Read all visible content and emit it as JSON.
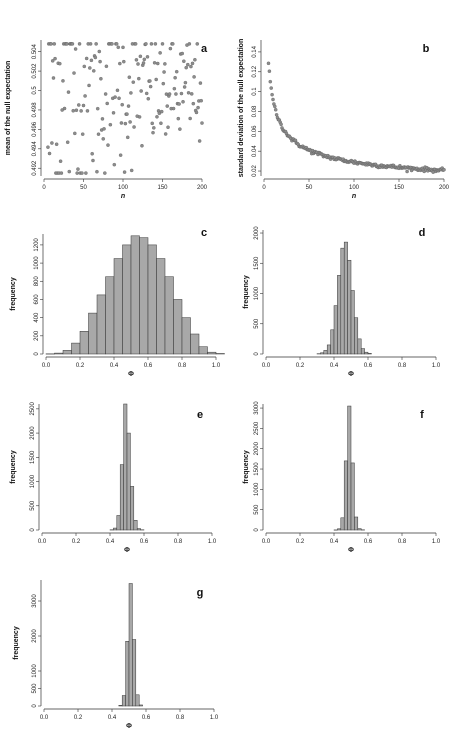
{
  "chart_data": [
    {
      "panel": "a",
      "type": "scatter",
      "xlabel": "n",
      "ylabel": "mean of the null expectation",
      "xlim": [
        0,
        200
      ],
      "ylim": [
        0.4912,
        0.5052
      ],
      "xticks": [
        0,
        50,
        100,
        150,
        200
      ],
      "yticks": [
        0.492,
        0.494,
        0.496,
        0.498,
        0.5,
        0.502,
        0.504
      ],
      "point_color": "#8c8c8c"
    },
    {
      "panel": "b",
      "type": "scatter",
      "xlabel": "n",
      "ylabel": "standard deviation of the null expectation",
      "xlim": [
        0,
        200
      ],
      "ylim": [
        0.015,
        0.152
      ],
      "xticks": [
        0,
        50,
        100,
        150,
        200
      ],
      "yticks": [
        0.02,
        0.04,
        0.06,
        0.08,
        0.1,
        0.12,
        0.14
      ],
      "point_color": "#8c8c8c"
    },
    {
      "panel": "c",
      "type": "bar",
      "xlabel": "Φ",
      "ylabel": "frequency",
      "xlim": [
        0,
        1
      ],
      "ylim": [
        0,
        1320
      ],
      "xticks": [
        "0.0",
        "0.2",
        "0.4",
        "0.6",
        "0.8",
        "1.0"
      ],
      "yticks": [
        0,
        200,
        400,
        600,
        800,
        1000,
        1200
      ],
      "bin_start": 0.0,
      "bin_width": 0.05,
      "values": [
        2,
        10,
        40,
        120,
        250,
        450,
        650,
        850,
        1050,
        1200,
        1300,
        1280,
        1200,
        1050,
        850,
        600,
        400,
        220,
        80,
        20,
        5
      ],
      "bar_color": "#a8a8a8"
    },
    {
      "panel": "d",
      "type": "bar",
      "xlabel": "Φ",
      "ylabel": "frequency",
      "xlim": [
        0,
        1
      ],
      "ylim": [
        0,
        2050
      ],
      "xticks": [
        "0.0",
        "0.2",
        "0.4",
        "0.6",
        "0.8",
        "1.0"
      ],
      "yticks": [
        0,
        500,
        1000,
        1500,
        2000
      ],
      "bin_start": 0.3,
      "bin_width": 0.02,
      "values": [
        5,
        20,
        60,
        150,
        400,
        800,
        1300,
        1750,
        1850,
        1550,
        1050,
        600,
        250,
        90,
        30,
        10
      ],
      "bar_color": "#a8a8a8"
    },
    {
      "panel": "e",
      "type": "bar",
      "xlabel": "Φ",
      "ylabel": "frequency",
      "xlim": [
        0,
        1
      ],
      "ylim": [
        0,
        2600
      ],
      "xticks": [
        "0.0",
        "0.2",
        "0.4",
        "0.6",
        "0.8",
        "1.0"
      ],
      "yticks": [
        0,
        500,
        1000,
        1500,
        2000,
        2500
      ],
      "bin_start": 0.4,
      "bin_width": 0.02,
      "values": [
        5,
        40,
        300,
        1350,
        2600,
        2000,
        900,
        200,
        30,
        5
      ],
      "bar_color": "#a8a8a8"
    },
    {
      "panel": "f",
      "type": "bar",
      "xlabel": "Φ",
      "ylabel": "frequency",
      "xlim": [
        0,
        1
      ],
      "ylim": [
        0,
        3100
      ],
      "xticks": [
        "0.0",
        "0.2",
        "0.4",
        "0.6",
        "0.8",
        "1.0"
      ],
      "yticks": [
        0,
        500,
        1000,
        1500,
        2000,
        2500,
        3000
      ],
      "bin_start": 0.4,
      "bin_width": 0.02,
      "values": [
        3,
        30,
        300,
        1700,
        3050,
        1650,
        320,
        35,
        5
      ],
      "bar_color": "#a8a8a8"
    },
    {
      "panel": "g",
      "type": "bar",
      "xlabel": "Φ",
      "ylabel": "frequency",
      "xlim": [
        0,
        1
      ],
      "ylim": [
        0,
        3600
      ],
      "xticks": [
        "0.0",
        "0.2",
        "0.4",
        "0.6",
        "0.8",
        "1.0"
      ],
      "yticks": [
        0,
        500,
        1000,
        2000,
        3000
      ],
      "bin_start": 0.44,
      "bin_width": 0.02,
      "values": [
        20,
        300,
        1850,
        3500,
        1900,
        320,
        30
      ],
      "bar_color": "#a8a8a8"
    }
  ]
}
